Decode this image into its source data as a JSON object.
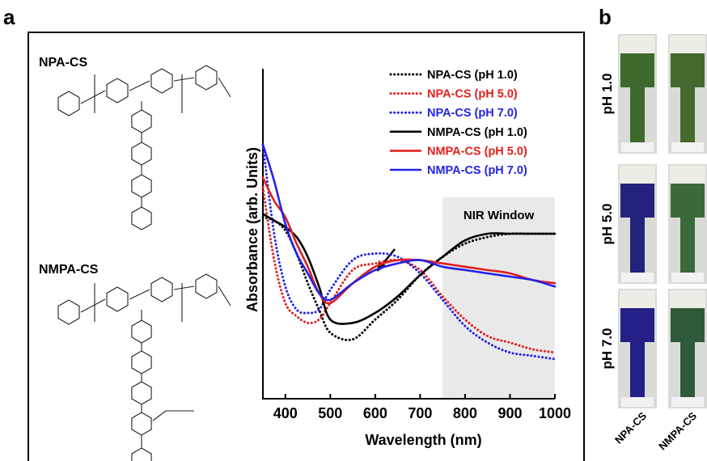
{
  "panel_a_label": "a",
  "structures": [
    {
      "name": "NPA-CS"
    },
    {
      "name": "NMPA-CS"
    }
  ],
  "chart_data": {
    "type": "line",
    "x_label": "Wavelength (nm)",
    "y_label": "Absorbance (arb. Units)",
    "x": [
      350,
      375,
      400,
      425,
      450,
      475,
      500,
      550,
      600,
      650,
      700,
      750,
      800,
      850,
      900,
      950,
      1000
    ],
    "xlim": [
      350,
      1000
    ],
    "xticks": [
      400,
      500,
      600,
      700,
      800,
      900,
      1000
    ],
    "ylim": [
      0,
      1
    ],
    "shaded_region": {
      "label": "NIR Window",
      "x": [
        750,
        1000
      ],
      "y": [
        0,
        0.61
      ]
    },
    "legend": "upper right",
    "series": [
      {
        "name": "NPA-CS (pH 1.0)",
        "color": "#000000",
        "style": "dotted",
        "values": [
          0.55,
          0.54,
          0.51,
          0.44,
          0.35,
          0.27,
          0.2,
          0.18,
          0.24,
          0.3,
          0.375,
          0.43,
          0.47,
          0.49,
          0.5,
          0.5,
          0.5
        ]
      },
      {
        "name": "NPA-CS (pH 5.0)",
        "color": "#e0201e",
        "style": "dotted",
        "values": [
          0.64,
          0.42,
          0.29,
          0.25,
          0.23,
          0.24,
          0.29,
          0.39,
          0.41,
          0.42,
          0.39,
          0.31,
          0.24,
          0.19,
          0.17,
          0.15,
          0.14
        ]
      },
      {
        "name": "NPA-CS (pH 7.0)",
        "color": "#2323e8",
        "style": "dotted",
        "values": [
          0.77,
          0.5,
          0.34,
          0.27,
          0.26,
          0.27,
          0.33,
          0.42,
          0.44,
          0.43,
          0.38,
          0.3,
          0.22,
          0.17,
          0.14,
          0.13,
          0.12
        ]
      },
      {
        "name": "NMPA-CS (pH 1.0)",
        "color": "#000000",
        "style": "solid",
        "values": [
          0.56,
          0.54,
          0.52,
          0.49,
          0.43,
          0.34,
          0.24,
          0.23,
          0.26,
          0.31,
          0.375,
          0.43,
          0.48,
          0.5,
          0.5,
          0.5,
          0.5
        ]
      },
      {
        "name": "NMPA-CS (pH 5.0)",
        "color": "#e0201e",
        "style": "solid",
        "values": [
          0.67,
          0.6,
          0.55,
          0.47,
          0.4,
          0.32,
          0.29,
          0.35,
          0.4,
          0.42,
          0.42,
          0.41,
          0.4,
          0.39,
          0.38,
          0.36,
          0.35
        ]
      },
      {
        "name": "NMPA-CS (pH 7.0)",
        "color": "#2323e8",
        "style": "solid",
        "values": [
          0.77,
          0.66,
          0.53,
          0.44,
          0.38,
          0.32,
          0.3,
          0.35,
          0.39,
          0.41,
          0.42,
          0.4,
          0.39,
          0.38,
          0.37,
          0.36,
          0.34
        ]
      }
    ]
  },
  "panel_b": {
    "label": "b",
    "rows": [
      "pH 1.0",
      "pH 5.0",
      "pH 7.0"
    ],
    "columns": [
      "NPA-CS",
      "NMPA-CS"
    ]
  }
}
